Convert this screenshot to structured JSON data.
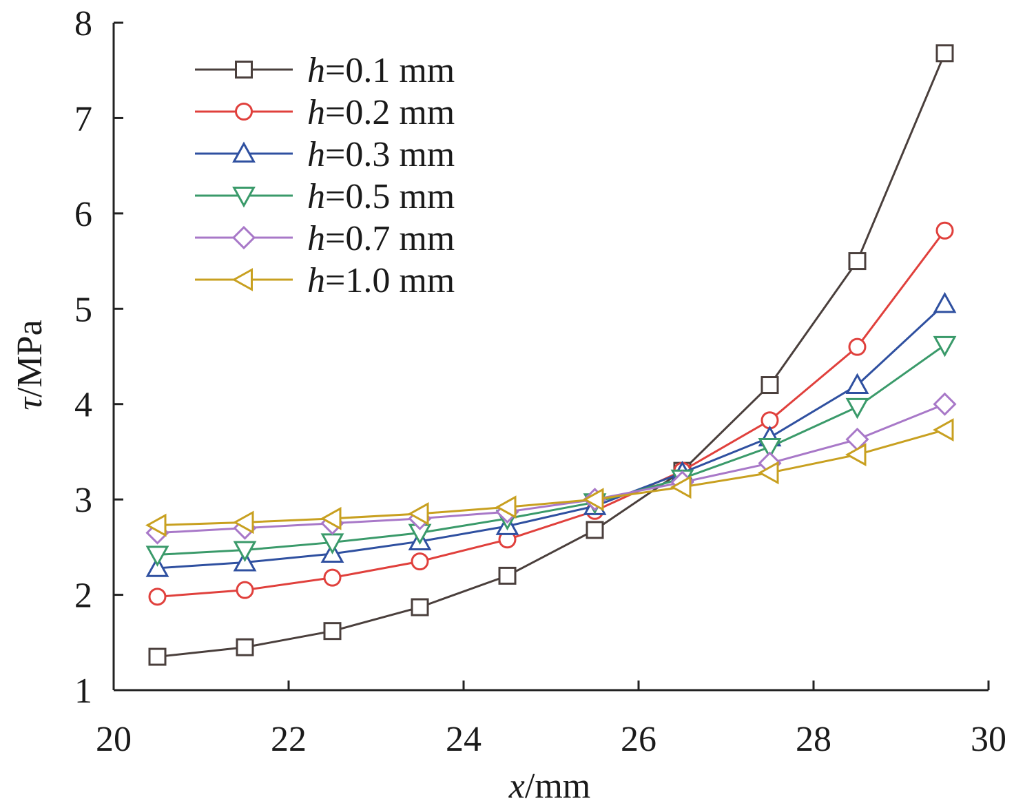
{
  "chart_data": {
    "type": "line",
    "xlabel_var": "x",
    "xlabel_unit": "/mm",
    "ylabel_var": "τ",
    "ylabel_unit": "/MPa",
    "xlim": [
      20,
      30
    ],
    "ylim": [
      1,
      8
    ],
    "x_ticks": [
      20,
      22,
      24,
      26,
      28,
      30
    ],
    "y_ticks": [
      1,
      2,
      3,
      4,
      5,
      6,
      7,
      8
    ],
    "grid": false,
    "legend_position": "top-left",
    "x": [
      20.5,
      21.5,
      22.5,
      23.5,
      24.5,
      25.5,
      26.5,
      27.5,
      28.5,
      29.5
    ],
    "series": [
      {
        "name_var": "h",
        "name_rest": "=0.1 mm",
        "marker": "square",
        "color": "#4a3f3c",
        "values": [
          1.35,
          1.45,
          1.62,
          1.87,
          2.2,
          2.68,
          3.3,
          4.2,
          5.5,
          7.68
        ]
      },
      {
        "name_var": "h",
        "name_rest": "=0.2 mm",
        "marker": "circle",
        "color": "#e0403c",
        "values": [
          1.98,
          2.05,
          2.18,
          2.35,
          2.58,
          2.88,
          3.3,
          3.83,
          4.6,
          5.82
        ]
      },
      {
        "name_var": "h",
        "name_rest": "=0.3 mm",
        "marker": "triangle-up",
        "color": "#2f50a0",
        "values": [
          2.28,
          2.34,
          2.43,
          2.56,
          2.72,
          2.93,
          3.28,
          3.65,
          4.2,
          5.05
        ]
      },
      {
        "name_var": "h",
        "name_rest": "=0.5 mm",
        "marker": "triangle-down",
        "color": "#3a9a6a",
        "values": [
          2.42,
          2.47,
          2.55,
          2.65,
          2.8,
          2.97,
          3.22,
          3.55,
          3.97,
          4.62
        ]
      },
      {
        "name_var": "h",
        "name_rest": "=0.7 mm",
        "marker": "diamond",
        "color": "#a878c8",
        "values": [
          2.65,
          2.7,
          2.75,
          2.8,
          2.87,
          3.0,
          3.18,
          3.38,
          3.63,
          4.0
        ]
      },
      {
        "name_var": "h",
        "name_rest": "=1.0 mm",
        "marker": "triangle-left",
        "color": "#c8a020",
        "values": [
          2.73,
          2.76,
          2.8,
          2.85,
          2.92,
          3.0,
          3.13,
          3.28,
          3.47,
          3.73
        ]
      }
    ]
  }
}
